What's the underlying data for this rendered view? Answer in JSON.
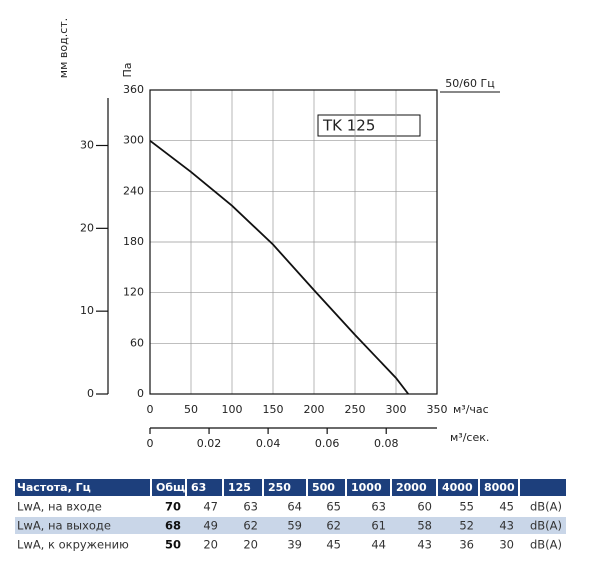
{
  "chart_data": {
    "type": "line",
    "model_label": "TK 125",
    "frequency_label": "50/60 Гц",
    "ylabel": "Па",
    "y2label": "мм вод.ст.",
    "xlabel": "м³/час",
    "x2label": "м³/сек.",
    "x": [
      0,
      50,
      100,
      150,
      200,
      250,
      300,
      315
    ],
    "series": [
      {
        "name": "TK 125",
        "color": "#111111",
        "values": [
          300,
          263,
          223,
          177,
          123,
          70,
          19,
          0
        ]
      }
    ],
    "xlim": [
      0,
      350
    ],
    "xticks": [
      0,
      50,
      100,
      150,
      200,
      250,
      300,
      350
    ],
    "ylim": [
      0,
      360
    ],
    "yticks": [
      0,
      60,
      120,
      180,
      240,
      300,
      360
    ],
    "y2lim": [
      0,
      36.7
    ],
    "y2ticks": [
      0,
      10,
      20,
      30
    ],
    "x2lim": [
      0,
      0.0972
    ],
    "x2ticks": [
      0,
      0.02,
      0.04,
      0.06,
      0.08
    ],
    "grid": true
  },
  "table": {
    "header": [
      "Частота, Гц",
      "Общ",
      "63",
      "125",
      "250",
      "500",
      "1000",
      "2000",
      "4000",
      "8000"
    ],
    "rows": [
      [
        "LwA, на входе",
        70,
        47,
        63,
        64,
        65,
        63,
        60,
        55,
        45,
        "dB(A)"
      ],
      [
        "LwA, на выходе",
        68,
        49,
        62,
        59,
        62,
        61,
        58,
        52,
        43,
        "dB(A)"
      ],
      [
        "LwA, к окружению",
        50,
        20,
        20,
        39,
        45,
        44,
        43,
        36,
        30,
        "dB(A)"
      ]
    ]
  }
}
